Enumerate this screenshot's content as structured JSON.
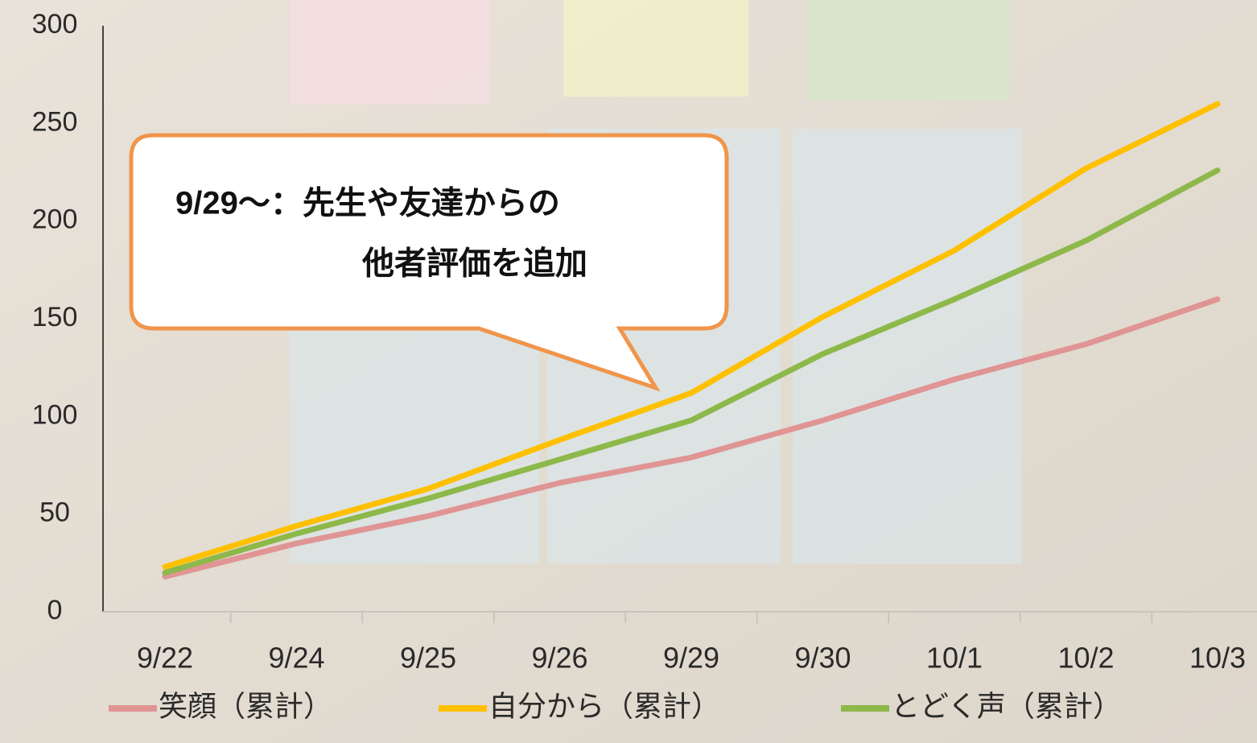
{
  "chart_data": {
    "type": "line",
    "categories": [
      "9/22",
      "9/24",
      "9/25",
      "9/26",
      "9/29",
      "9/30",
      "10/1",
      "10/2",
      "10/3"
    ],
    "series": [
      {
        "name": "笑顔（累計）",
        "color": "#e09494",
        "values": [
          18,
          35,
          49,
          66,
          79,
          98,
          119,
          137,
          160
        ]
      },
      {
        "name": "自分から（累計）",
        "color": "#ffc000",
        "values": [
          23,
          44,
          63,
          88,
          112,
          151,
          185,
          227,
          260
        ]
      },
      {
        "name": "とどく声（累計）",
        "color": "#8db84a",
        "values": [
          20,
          40,
          58,
          78,
          98,
          132,
          160,
          190,
          226
        ]
      }
    ],
    "ylim": [
      0,
      300
    ],
    "yticks": [
      0,
      50,
      100,
      150,
      200,
      250,
      300
    ],
    "annotation": [
      "9/29～：先生や友達からの",
      "他者評価を追加"
    ],
    "legend": "bottom"
  }
}
